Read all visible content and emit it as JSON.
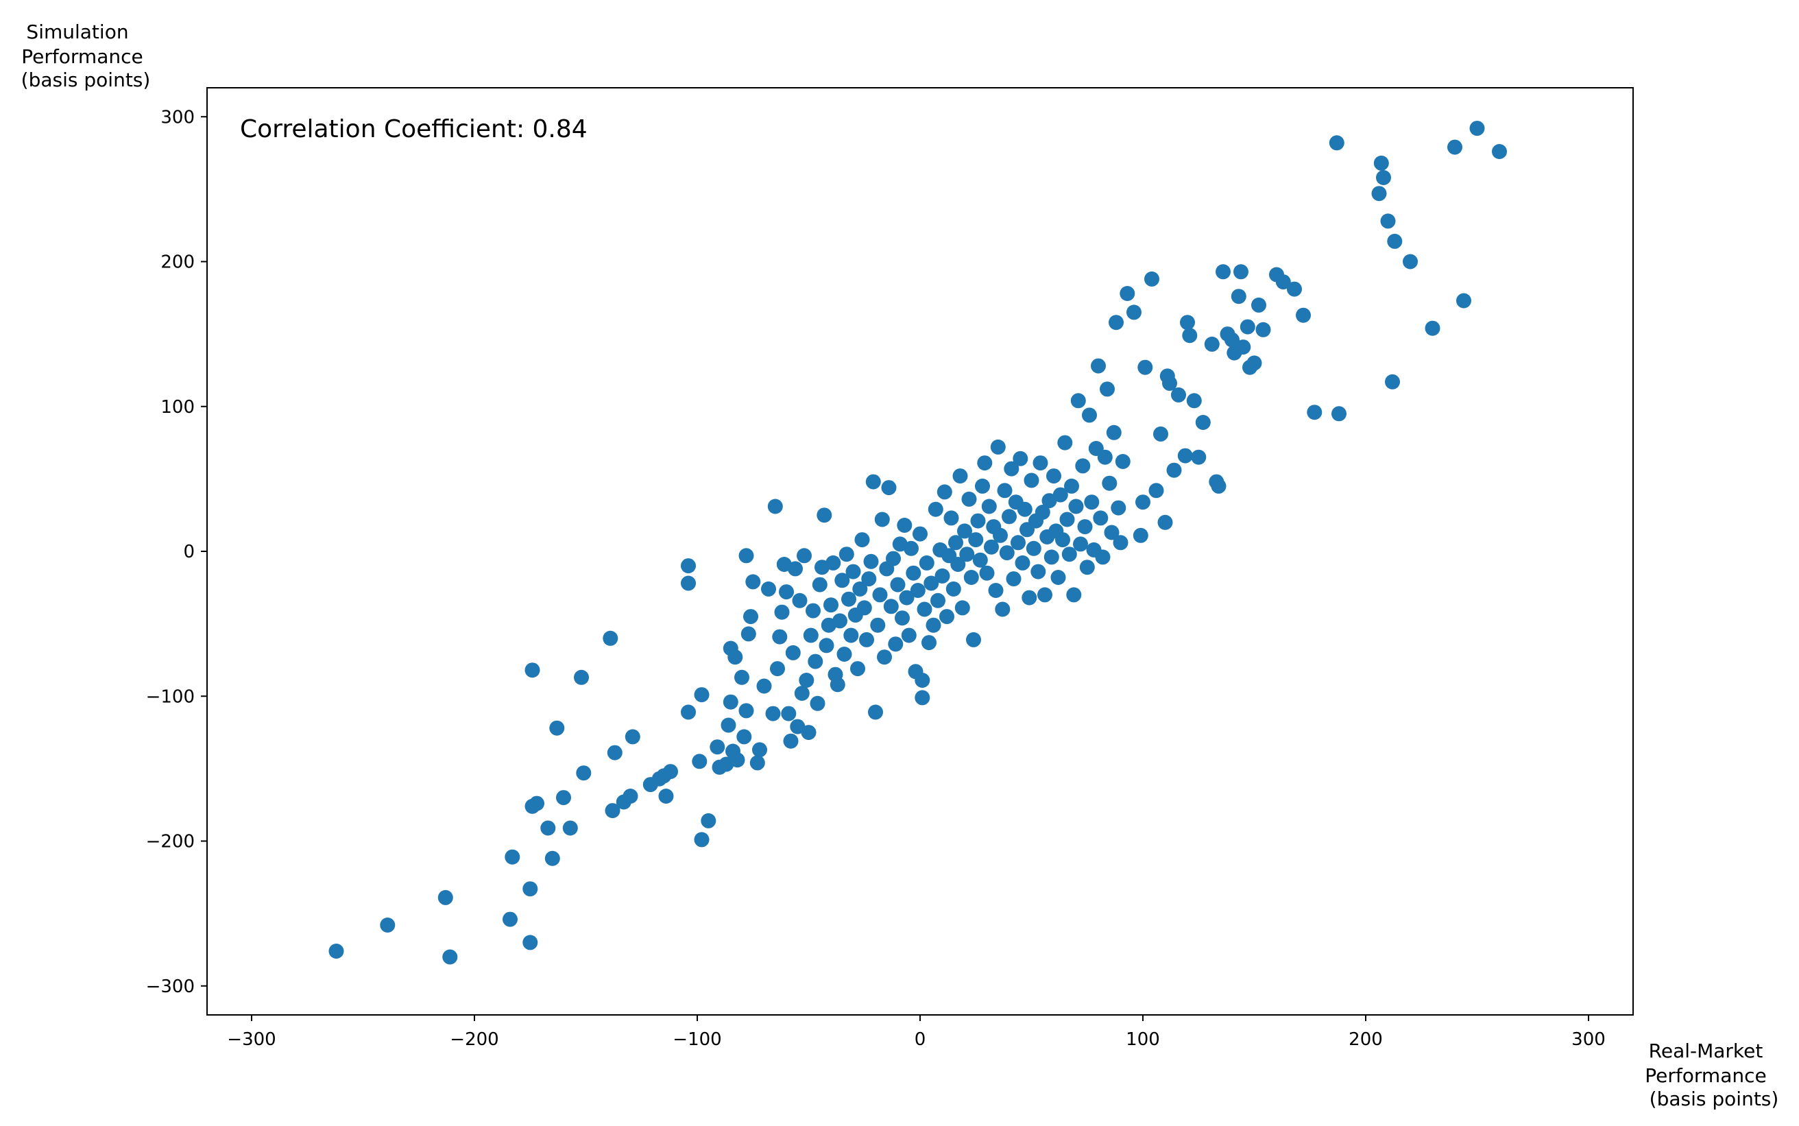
{
  "chart_data": {
    "type": "scatter",
    "title": "",
    "xlabel": [
      "Real-Market",
      "Performance",
      "(basis points)"
    ],
    "ylabel": [
      "Simulation",
      "Performance",
      "(basis points)"
    ],
    "xlim": [
      -320,
      320
    ],
    "ylim": [
      -320,
      320
    ],
    "xticks": [
      -300,
      -200,
      -100,
      0,
      100,
      200,
      300
    ],
    "yticks": [
      -300,
      -200,
      -100,
      0,
      100,
      200,
      300
    ],
    "xtick_labels": [
      "−300",
      "−200",
      "−100",
      "0",
      "100",
      "200",
      "300"
    ],
    "ytick_labels": [
      "−300",
      "−200",
      "−100",
      "0",
      "100",
      "200",
      "300"
    ],
    "grid": false,
    "annotation": "Correlation Coefficient: 0.84",
    "marker_color": "#1f77b4",
    "series": [
      {
        "points": [
          [
            -262,
            -276
          ],
          [
            -239,
            -258
          ],
          [
            -211,
            -280
          ],
          [
            -213,
            -239
          ],
          [
            -184,
            -254
          ],
          [
            -183,
            -211
          ],
          [
            -175,
            -270
          ],
          [
            -175,
            -233
          ],
          [
            -174,
            -176
          ],
          [
            -172,
            -174
          ],
          [
            -167,
            -191
          ],
          [
            -165,
            -212
          ],
          [
            -160,
            -170
          ],
          [
            -157,
            -191
          ],
          [
            -163,
            -122
          ],
          [
            -174,
            -82
          ],
          [
            -152,
            -87
          ],
          [
            -151,
            -153
          ],
          [
            -139,
            -60
          ],
          [
            -138,
            -179
          ],
          [
            -137,
            -139
          ],
          [
            -133,
            -173
          ],
          [
            -130,
            -169
          ],
          [
            -129,
            -128
          ],
          [
            -121,
            -161
          ],
          [
            -117,
            -157
          ],
          [
            -115,
            -155
          ],
          [
            -114,
            -169
          ],
          [
            -112,
            -152
          ],
          [
            -104,
            -10
          ],
          [
            -104,
            -22
          ],
          [
            -104,
            -111
          ],
          [
            -99,
            -145
          ],
          [
            -98,
            -99
          ],
          [
            -98,
            -199
          ],
          [
            -95,
            -186
          ],
          [
            -91,
            -135
          ],
          [
            -90,
            -149
          ],
          [
            -87,
            -147
          ],
          [
            -86,
            -120
          ],
          [
            -85,
            -104
          ],
          [
            -85,
            -67
          ],
          [
            -84,
            -138
          ],
          [
            -83,
            -73
          ],
          [
            -82,
            -144
          ],
          [
            -80,
            -87
          ],
          [
            -79,
            -128
          ],
          [
            -78,
            -110
          ],
          [
            -78,
            -3
          ],
          [
            -77,
            -57
          ],
          [
            -76,
            -45
          ],
          [
            -75,
            -21
          ],
          [
            -73,
            -146
          ],
          [
            -72,
            -137
          ],
          [
            -70,
            -93
          ],
          [
            -68,
            -26
          ],
          [
            -66,
            -112
          ],
          [
            -65,
            31
          ],
          [
            -64,
            -81
          ],
          [
            -63,
            -59
          ],
          [
            -62,
            -42
          ],
          [
            -61,
            -9
          ],
          [
            -60,
            -28
          ],
          [
            -59,
            -112
          ],
          [
            -58,
            -131
          ],
          [
            -57,
            -70
          ],
          [
            -56,
            -12
          ],
          [
            -55,
            -121
          ],
          [
            -54,
            -34
          ],
          [
            -53,
            -98
          ],
          [
            -52,
            -3
          ],
          [
            -51,
            -89
          ],
          [
            -50,
            -125
          ],
          [
            -49,
            -58
          ],
          [
            -48,
            -41
          ],
          [
            -47,
            -76
          ],
          [
            -46,
            -105
          ],
          [
            -45,
            -23
          ],
          [
            -44,
            -11
          ],
          [
            -43,
            25
          ],
          [
            -42,
            -65
          ],
          [
            -41,
            -51
          ],
          [
            -40,
            -37
          ],
          [
            -39,
            -8
          ],
          [
            -38,
            -85
          ],
          [
            -37,
            -92
          ],
          [
            -36,
            -48
          ],
          [
            -35,
            -20
          ],
          [
            -34,
            -71
          ],
          [
            -33,
            -2
          ],
          [
            -32,
            -33
          ],
          [
            -31,
            -58
          ],
          [
            -30,
            -14
          ],
          [
            -29,
            -44
          ],
          [
            -28,
            -81
          ],
          [
            -27,
            -26
          ],
          [
            -26,
            8
          ],
          [
            -25,
            -39
          ],
          [
            -24,
            -61
          ],
          [
            -23,
            -19
          ],
          [
            -22,
            -7
          ],
          [
            -21,
            48
          ],
          [
            -20,
            -111
          ],
          [
            -19,
            -51
          ],
          [
            -18,
            -30
          ],
          [
            -17,
            22
          ],
          [
            -16,
            -73
          ],
          [
            -15,
            -12
          ],
          [
            -14,
            44
          ],
          [
            -13,
            -38
          ],
          [
            -12,
            -5
          ],
          [
            -11,
            -64
          ],
          [
            -10,
            -23
          ],
          [
            -9,
            5
          ],
          [
            -8,
            -46
          ],
          [
            -7,
            18
          ],
          [
            -6,
            -32
          ],
          [
            -5,
            -58
          ],
          [
            -4,
            2
          ],
          [
            -3,
            -15
          ],
          [
            -2,
            -83
          ],
          [
            -1,
            -27
          ],
          [
            0,
            12
          ],
          [
            1,
            -101
          ],
          [
            1,
            -89
          ],
          [
            2,
            -40
          ],
          [
            3,
            -8
          ],
          [
            4,
            -63
          ],
          [
            5,
            -22
          ],
          [
            6,
            -51
          ],
          [
            7,
            29
          ],
          [
            8,
            -34
          ],
          [
            9,
            1
          ],
          [
            10,
            -17
          ],
          [
            11,
            41
          ],
          [
            12,
            -45
          ],
          [
            13,
            -3
          ],
          [
            14,
            23
          ],
          [
            15,
            -26
          ],
          [
            16,
            6
          ],
          [
            17,
            -9
          ],
          [
            18,
            52
          ],
          [
            19,
            -39
          ],
          [
            20,
            14
          ],
          [
            21,
            -2
          ],
          [
            22,
            36
          ],
          [
            23,
            -18
          ],
          [
            24,
            -61
          ],
          [
            25,
            8
          ],
          [
            26,
            21
          ],
          [
            27,
            -6
          ],
          [
            28,
            45
          ],
          [
            29,
            61
          ],
          [
            30,
            -15
          ],
          [
            31,
            31
          ],
          [
            32,
            3
          ],
          [
            33,
            17
          ],
          [
            34,
            -27
          ],
          [
            35,
            72
          ],
          [
            36,
            11
          ],
          [
            37,
            -40
          ],
          [
            38,
            42
          ],
          [
            39,
            -1
          ],
          [
            40,
            24
          ],
          [
            41,
            57
          ],
          [
            42,
            -19
          ],
          [
            43,
            34
          ],
          [
            44,
            6
          ],
          [
            45,
            64
          ],
          [
            46,
            -8
          ],
          [
            47,
            29
          ],
          [
            48,
            15
          ],
          [
            49,
            -32
          ],
          [
            50,
            49
          ],
          [
            51,
            2
          ],
          [
            52,
            21
          ],
          [
            53,
            -14
          ],
          [
            54,
            61
          ],
          [
            55,
            27
          ],
          [
            56,
            -30
          ],
          [
            57,
            10
          ],
          [
            58,
            35
          ],
          [
            59,
            -4
          ],
          [
            60,
            52
          ],
          [
            61,
            14
          ],
          [
            62,
            -18
          ],
          [
            63,
            39
          ],
          [
            64,
            8
          ],
          [
            65,
            75
          ],
          [
            66,
            22
          ],
          [
            67,
            -2
          ],
          [
            68,
            45
          ],
          [
            69,
            -30
          ],
          [
            70,
            31
          ],
          [
            71,
            104
          ],
          [
            72,
            5
          ],
          [
            73,
            59
          ],
          [
            74,
            17
          ],
          [
            75,
            -11
          ],
          [
            76,
            94
          ],
          [
            77,
            34
          ],
          [
            78,
            1
          ],
          [
            79,
            71
          ],
          [
            80,
            128
          ],
          [
            81,
            23
          ],
          [
            82,
            -4
          ],
          [
            83,
            65
          ],
          [
            84,
            112
          ],
          [
            85,
            47
          ],
          [
            86,
            13
          ],
          [
            87,
            82
          ],
          [
            88,
            158
          ],
          [
            89,
            30
          ],
          [
            90,
            6
          ],
          [
            91,
            62
          ],
          [
            93,
            178
          ],
          [
            96,
            165
          ],
          [
            99,
            11
          ],
          [
            100,
            34
          ],
          [
            101,
            127
          ],
          [
            104,
            188
          ],
          [
            106,
            42
          ],
          [
            108,
            81
          ],
          [
            110,
            20
          ],
          [
            111,
            121
          ],
          [
            112,
            116
          ],
          [
            114,
            56
          ],
          [
            116,
            108
          ],
          [
            119,
            66
          ],
          [
            120,
            158
          ],
          [
            121,
            149
          ],
          [
            123,
            104
          ],
          [
            125,
            65
          ],
          [
            127,
            89
          ],
          [
            131,
            143
          ],
          [
            133,
            48
          ],
          [
            134,
            45
          ],
          [
            136,
            193
          ],
          [
            138,
            150
          ],
          [
            140,
            146
          ],
          [
            141,
            137
          ],
          [
            143,
            176
          ],
          [
            144,
            193
          ],
          [
            145,
            141
          ],
          [
            147,
            155
          ],
          [
            148,
            127
          ],
          [
            150,
            130
          ],
          [
            152,
            170
          ],
          [
            154,
            153
          ],
          [
            160,
            191
          ],
          [
            163,
            186
          ],
          [
            168,
            181
          ],
          [
            172,
            163
          ],
          [
            177,
            96
          ],
          [
            187,
            282
          ],
          [
            188,
            95
          ],
          [
            206,
            247
          ],
          [
            207,
            268
          ],
          [
            208,
            258
          ],
          [
            210,
            228
          ],
          [
            212,
            117
          ],
          [
            213,
            214
          ],
          [
            220,
            200
          ],
          [
            230,
            154
          ],
          [
            240,
            279
          ],
          [
            244,
            173
          ],
          [
            250,
            292
          ],
          [
            260,
            276
          ]
        ]
      }
    ]
  }
}
